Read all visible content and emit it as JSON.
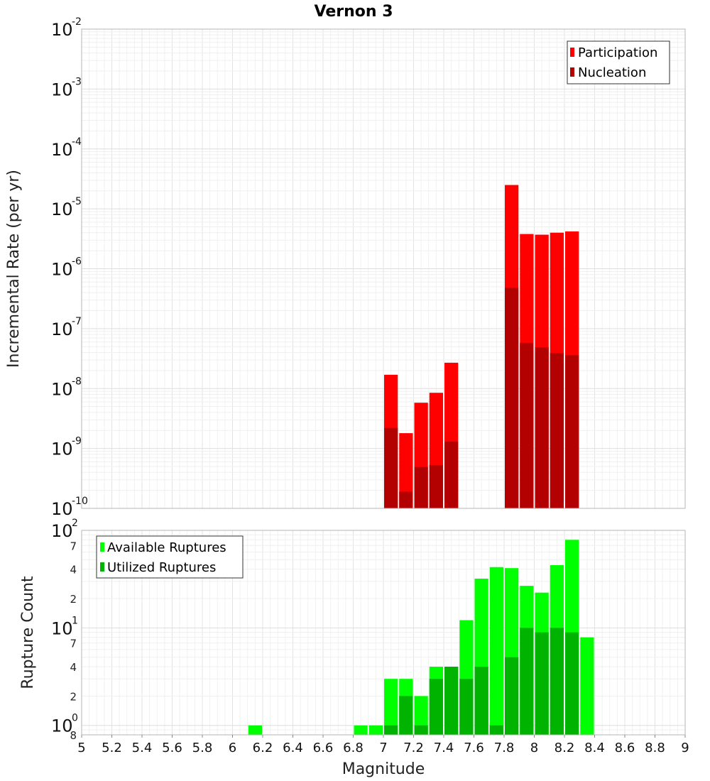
{
  "chart_data": [
    {
      "type": "bar",
      "title": "Vernon 3",
      "xlabel": "",
      "ylabel": "Incremental Rate (per yr)",
      "yscale": "log",
      "ylim": [
        1e-10,
        0.01
      ],
      "xlim": [
        5,
        9
      ],
      "y_tick_bases": [
        "10",
        "10",
        "10",
        "10",
        "10",
        "10",
        "10",
        "10",
        "10"
      ],
      "y_tick_exponents": [
        "-10",
        "-9",
        "-8",
        "-7",
        "-6",
        "-5",
        "-4",
        "-3",
        "-2"
      ],
      "y_tick_values": [
        1e-10,
        1e-09,
        1e-08,
        1e-07,
        1e-06,
        1e-05,
        0.0001,
        0.001,
        0.01
      ],
      "legend_position": "top-right",
      "grid": true,
      "bar_width": 0.1,
      "series": [
        {
          "name": "Participation",
          "color": "#ff0000",
          "x": [
            7.05,
            7.15,
            7.25,
            7.35,
            7.45,
            7.85,
            7.95,
            8.05,
            8.15,
            8.25
          ],
          "values": [
            1.7e-08,
            1.8e-09,
            5.8e-09,
            8.5e-09,
            2.7e-08,
            2.5e-05,
            3.8e-06,
            3.7e-06,
            4e-06,
            4.2e-06
          ]
        },
        {
          "name": "Nucleation",
          "color": "#b30000",
          "x": [
            7.05,
            7.15,
            7.25,
            7.35,
            7.45,
            7.85,
            7.95,
            8.05,
            8.15,
            8.25
          ],
          "values": [
            2.2e-09,
            1.9e-10,
            4.9e-10,
            5.3e-10,
            1.3e-09,
            4.8e-07,
            5.8e-08,
            4.9e-08,
            3.9e-08,
            3.6e-08
          ]
        }
      ]
    },
    {
      "type": "bar",
      "title": "",
      "xlabel": "Magnitude",
      "ylabel": "Rupture Count",
      "yscale": "log",
      "ylim": [
        0.8,
        100
      ],
      "xlim": [
        5,
        9
      ],
      "x_ticks": [
        "5",
        "5.2",
        "5.4",
        "5.6",
        "5.8",
        "6",
        "6.2",
        "6.4",
        "6.6",
        "6.8",
        "7",
        "7.2",
        "7.4",
        "7.6",
        "7.8",
        "8",
        "8.2",
        "8.4",
        "8.6",
        "8.8",
        "9"
      ],
      "major_tick_bases": [
        "10",
        "10",
        "10"
      ],
      "major_tick_exponents": [
        "0",
        "1",
        "2"
      ],
      "minor_tick_labels": [
        "8",
        "2",
        "4",
        "7",
        "2",
        "4",
        "7"
      ],
      "legend_position": "top-left",
      "grid": true,
      "bar_width": 0.1,
      "series": [
        {
          "name": "Available Ruptures",
          "color": "#00ff00",
          "x": [
            6.15,
            6.85,
            6.95,
            7.05,
            7.15,
            7.25,
            7.35,
            7.45,
            7.55,
            7.65,
            7.75,
            7.85,
            7.95,
            8.05,
            8.15,
            8.25,
            8.35
          ],
          "values": [
            1,
            1,
            1,
            3,
            3,
            2,
            4,
            4,
            12,
            32,
            42,
            41,
            27,
            23,
            44,
            80,
            8
          ]
        },
        {
          "name": "Utilized Ruptures",
          "color": "#00b300",
          "x": [
            7.05,
            7.15,
            7.25,
            7.35,
            7.45,
            7.55,
            7.65,
            7.75,
            7.85,
            7.95,
            8.05,
            8.15,
            8.25
          ],
          "values": [
            1,
            2,
            1,
            3,
            4,
            3,
            4,
            1,
            5,
            10,
            9,
            10,
            9
          ]
        }
      ]
    }
  ]
}
